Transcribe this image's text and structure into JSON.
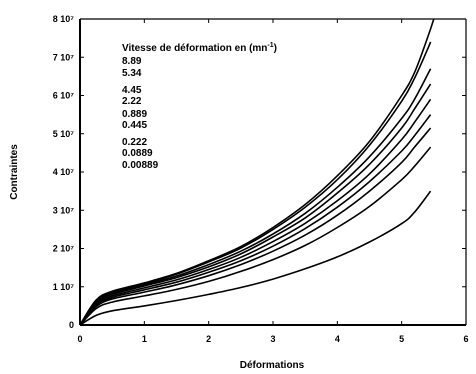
{
  "chart_data": {
    "type": "line",
    "xlabel": "Déformations",
    "ylabel": "Contraintes",
    "xlim": [
      0,
      6
    ],
    "ylim": [
      0,
      80000000
    ],
    "x_tick_labels": [
      "0",
      "1",
      "2",
      "3",
      "4",
      "5",
      "6"
    ],
    "y_tick_labels": [
      "0",
      "1 10⁷",
      "2 10⁷",
      "3 10⁷",
      "4 10⁷",
      "5 10⁷",
      "6 10⁷",
      "7 10⁷",
      "8 10⁷"
    ],
    "legend_title_parts": [
      "Vitesse de déformation  en (mn",
      "-1",
      ")"
    ],
    "grid": false,
    "series": [
      {
        "name": "8.89",
        "x": [
          0,
          0.25,
          0.5,
          1,
          1.5,
          2,
          2.5,
          3,
          3.5,
          4,
          4.5,
          5,
          5.2,
          5.4,
          5.5
        ],
        "y": [
          0,
          6500000,
          8800000,
          11000000,
          13500000,
          16800000,
          20500000,
          25500000,
          31500000,
          39000000,
          48000000,
          60000000,
          66000000,
          75000000,
          80000000
        ]
      },
      {
        "name": "5.34",
        "x": [
          0,
          0.25,
          0.5,
          1,
          1.5,
          2,
          2.5,
          3,
          3.5,
          4,
          4.5,
          5,
          5.2,
          5.4,
          5.45
        ],
        "y": [
          0,
          6300000,
          8600000,
          10800000,
          13300000,
          16500000,
          20100000,
          25000000,
          30800000,
          38000000,
          47000000,
          58500000,
          64500000,
          72000000,
          74000000
        ]
      },
      {
        "name": "4.45",
        "x": [
          0,
          0.25,
          0.5,
          1,
          1.5,
          2,
          2.5,
          3,
          3.5,
          4,
          4.5,
          5,
          5.2,
          5.45
        ],
        "y": [
          0,
          6000000,
          8300000,
          10500000,
          12800000,
          15800000,
          19300000,
          23800000,
          29200000,
          36000000,
          44000000,
          54000000,
          59000000,
          67000000
        ]
      },
      {
        "name": "2.22",
        "x": [
          0,
          0.25,
          0.5,
          1,
          1.5,
          2,
          2.5,
          3,
          3.5,
          4,
          4.5,
          5,
          5.2,
          5.45
        ],
        "y": [
          0,
          5800000,
          8000000,
          10200000,
          12400000,
          15200000,
          18600000,
          23000000,
          28000000,
          34500000,
          42000000,
          51500000,
          56500000,
          63000000
        ]
      },
      {
        "name": "0.889",
        "x": [
          0,
          0.25,
          0.5,
          1,
          1.5,
          2,
          2.5,
          3,
          3.5,
          4,
          4.5,
          5,
          5.2,
          5.45
        ],
        "y": [
          0,
          5500000,
          7600000,
          9700000,
          11800000,
          14500000,
          17700000,
          21800000,
          26600000,
          32500000,
          39500000,
          48500000,
          53000000,
          59000000
        ]
      },
      {
        "name": "0.445",
        "x": [
          0,
          0.25,
          0.5,
          1,
          1.5,
          2,
          2.5,
          3,
          3.5,
          4,
          4.5,
          5,
          5.2,
          5.45
        ],
        "y": [
          0,
          5200000,
          7200000,
          9200000,
          11200000,
          13800000,
          16800000,
          20600000,
          25200000,
          30800000,
          37500000,
          45500000,
          49500000,
          55000000
        ]
      },
      {
        "name": "0.222",
        "x": [
          0,
          0.25,
          0.5,
          1,
          1.5,
          2,
          2.5,
          3,
          3.5,
          4,
          4.5,
          5,
          5.2,
          5.45
        ],
        "y": [
          0,
          4800000,
          6800000,
          8600000,
          10500000,
          12900000,
          15800000,
          19300000,
          23500000,
          28700000,
          35000000,
          42500000,
          46500000,
          51500000
        ]
      },
      {
        "name": "0.0889",
        "x": [
          0,
          0.25,
          0.5,
          1,
          1.5,
          2,
          2.5,
          3,
          3.5,
          4,
          4.5,
          5,
          5.2,
          5.45
        ],
        "y": [
          0,
          4300000,
          6000000,
          7600000,
          9300000,
          11400000,
          14000000,
          17100000,
          20800000,
          25500000,
          31000000,
          38000000,
          41500000,
          46500000
        ]
      },
      {
        "name": "0.00889",
        "x": [
          0,
          0.25,
          0.5,
          1,
          1.5,
          2,
          2.5,
          3,
          3.5,
          4,
          4.5,
          5,
          5.2,
          5.45
        ],
        "y": [
          0,
          2500000,
          3700000,
          5000000,
          6400000,
          8000000,
          9800000,
          12000000,
          14700000,
          17800000,
          21700000,
          26500000,
          29500000,
          35000000
        ]
      }
    ]
  }
}
